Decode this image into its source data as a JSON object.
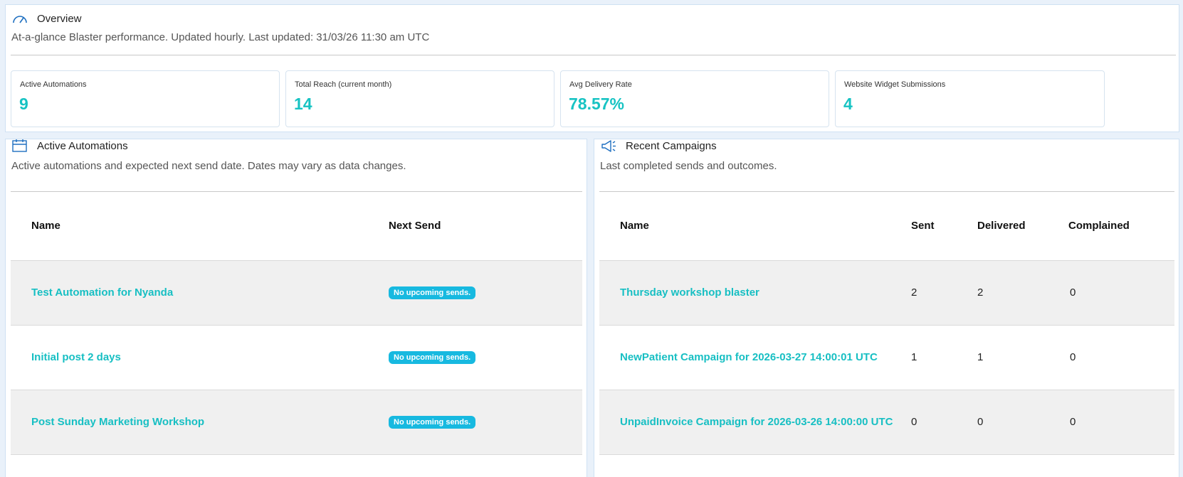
{
  "overview": {
    "title": "Overview",
    "description": "At-a-glance Blaster performance. Updated hourly. Last updated: 31/03/26 11:30 am UTC",
    "stats": [
      {
        "label": "Active Automations",
        "value": "9"
      },
      {
        "label": "Total Reach (current month)",
        "value": "14"
      },
      {
        "label": "Avg Delivery Rate",
        "value": "78.57%"
      },
      {
        "label": "Website Widget Submissions",
        "value": "4"
      }
    ]
  },
  "automations": {
    "title": "Active Automations",
    "description": "Active automations and expected next send date. Dates may vary as data changes.",
    "columns": [
      "Name",
      "Next Send"
    ],
    "rows": [
      {
        "name": "Test Automation for Nyanda",
        "next_send": "No upcoming sends."
      },
      {
        "name": "Initial post 2 days",
        "next_send": "No upcoming sends."
      },
      {
        "name": "Post Sunday Marketing Workshop",
        "next_send": "No upcoming sends."
      }
    ]
  },
  "campaigns": {
    "title": "Recent Campaigns",
    "description": "Last completed sends and outcomes.",
    "columns": [
      "Name",
      "Sent",
      "Delivered",
      "Complained"
    ],
    "rows": [
      {
        "name": "Thursday workshop blaster",
        "sent": "2",
        "delivered": "2",
        "complained": "0"
      },
      {
        "name": "NewPatient Campaign for 2026-03-27 14:00:01 UTC",
        "sent": "1",
        "delivered": "1",
        "complained": "0"
      },
      {
        "name": "UnpaidInvoice Campaign for 2026-03-26 14:00:00 UTC",
        "sent": "0",
        "delivered": "0",
        "complained": "0"
      }
    ]
  },
  "colors": {
    "accent": "#17c3c3",
    "badge": "#17b9e0",
    "icon": "#1e6fc0"
  }
}
